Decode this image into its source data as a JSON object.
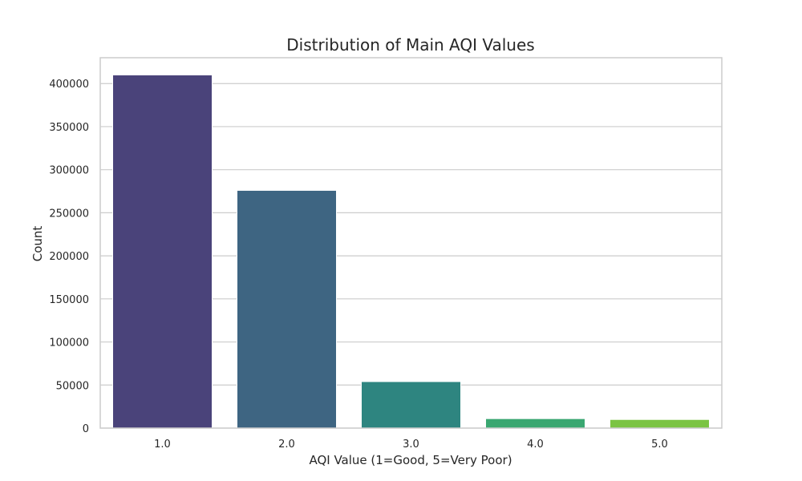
{
  "chart_data": {
    "type": "bar",
    "title": "Distribution of Main AQI Values",
    "xlabel": "AQI Value (1=Good, 5=Very Poor)",
    "ylabel": "Count",
    "categories": [
      "1.0",
      "2.0",
      "3.0",
      "4.0",
      "5.0"
    ],
    "values": [
      410000,
      276000,
      54000,
      11000,
      10000
    ],
    "colors": [
      "#4a437a",
      "#3e6582",
      "#2e8580",
      "#3aa771",
      "#7bc443"
    ],
    "ylim": [
      0,
      430000
    ],
    "yticks": [
      0,
      50000,
      100000,
      150000,
      200000,
      250000,
      300000,
      350000,
      400000
    ],
    "ytick_labels": [
      "0",
      "50000",
      "100000",
      "150000",
      "200000",
      "250000",
      "300000",
      "350000",
      "400000"
    ],
    "grid": "horizontal",
    "legend": "none"
  }
}
